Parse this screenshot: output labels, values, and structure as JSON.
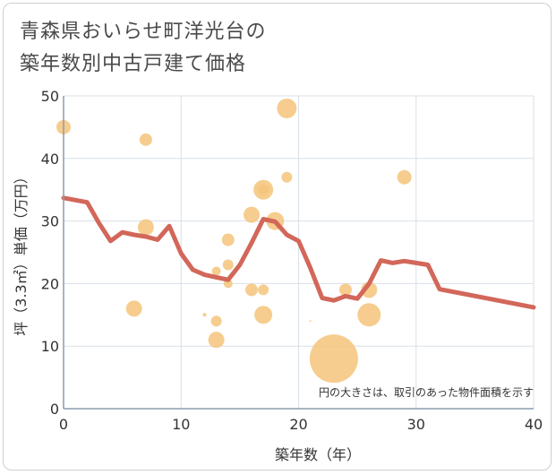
{
  "title_line1": "青森県おいらせ町洋光台の",
  "title_line2": "築年数別中古戸建て価格",
  "chart_data": {
    "type": "scatter",
    "title": "青森県おいらせ町洋光台の築年数別中古戸建て価格",
    "xlabel": "築年数（年）",
    "ylabel": "坪（3.3㎡）単価（万円）",
    "xlim": [
      0,
      40
    ],
    "ylim": [
      0,
      50
    ],
    "xticks": [
      "0",
      "10",
      "20",
      "30",
      "40"
    ],
    "yticks": [
      "0",
      "10",
      "20",
      "30",
      "40",
      "50"
    ],
    "grid": true,
    "annotation": "円の大きさは、取引のあった物件面積を示す",
    "colors": {
      "bubble": "#f5c47a",
      "line": "#d2675a",
      "grid": "#d8e0e8",
      "axis": "#8a9bb0"
    },
    "bubbles": [
      {
        "x": 0,
        "y": 45,
        "size": 8
      },
      {
        "x": 6,
        "y": 16,
        "size": 9
      },
      {
        "x": 7,
        "y": 43,
        "size": 7
      },
      {
        "x": 7,
        "y": 29,
        "size": 9
      },
      {
        "x": 12,
        "y": 15,
        "size": 2
      },
      {
        "x": 13,
        "y": 22,
        "size": 5
      },
      {
        "x": 13,
        "y": 14,
        "size": 6
      },
      {
        "x": 13,
        "y": 11,
        "size": 9
      },
      {
        "x": 14,
        "y": 27,
        "size": 7
      },
      {
        "x": 14,
        "y": 23,
        "size": 6
      },
      {
        "x": 14,
        "y": 20,
        "size": 5
      },
      {
        "x": 16,
        "y": 31,
        "size": 9
      },
      {
        "x": 16,
        "y": 19,
        "size": 7
      },
      {
        "x": 17,
        "y": 35,
        "size": 11
      },
      {
        "x": 17,
        "y": 35,
        "size": 6
      },
      {
        "x": 17,
        "y": 19,
        "size": 6
      },
      {
        "x": 17,
        "y": 15,
        "size": 10
      },
      {
        "x": 18,
        "y": 30,
        "size": 10
      },
      {
        "x": 19,
        "y": 48,
        "size": 11
      },
      {
        "x": 19,
        "y": 37,
        "size": 6
      },
      {
        "x": 21,
        "y": 14,
        "size": 1
      },
      {
        "x": 23,
        "y": 8,
        "size": 27
      },
      {
        "x": 24,
        "y": 19,
        "size": 7
      },
      {
        "x": 26,
        "y": 19,
        "size": 9
      },
      {
        "x": 26,
        "y": 15,
        "size": 13
      },
      {
        "x": 29,
        "y": 37,
        "size": 8
      }
    ],
    "trend": {
      "x": [
        0,
        2,
        3,
        4,
        5,
        6,
        7,
        8,
        9,
        10,
        11,
        12,
        13,
        14,
        15,
        16,
        17,
        18,
        19,
        20,
        21,
        22,
        23,
        24,
        25,
        26,
        27,
        28,
        29,
        30,
        31,
        32,
        40
      ],
      "y": [
        33.7,
        33,
        29.7,
        26.8,
        28.2,
        27.8,
        27.5,
        27,
        29.2,
        24.8,
        22.2,
        21.4,
        21,
        20.6,
        23,
        26.5,
        30.3,
        29.9,
        27.8,
        26.8,
        22.5,
        17.7,
        17.3,
        18,
        17.6,
        20,
        23.7,
        23.3,
        23.6,
        23.3,
        23,
        19.1,
        16.2
      ]
    }
  }
}
